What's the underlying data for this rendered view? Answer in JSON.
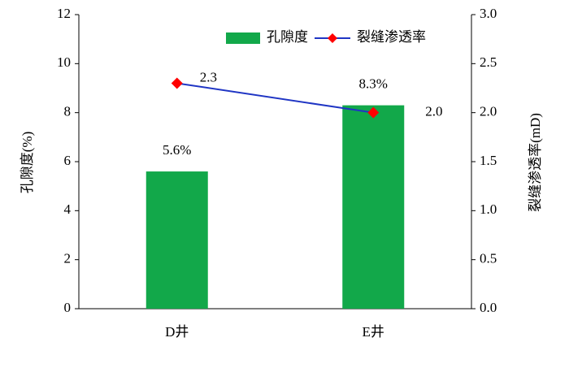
{
  "chart_data": {
    "type": "bar",
    "categories": [
      "D井",
      "E井"
    ],
    "series": [
      {
        "name": "孔隙度",
        "type": "bar",
        "color": "#12a84a",
        "values": [
          5.6,
          8.3
        ],
        "value_labels": [
          "5.6%",
          "8.3%"
        ]
      },
      {
        "name": "裂缝渗透率",
        "type": "line",
        "axis": "y2",
        "color": "#1f35c4",
        "marker_color": "#ff0000",
        "values": [
          2.3,
          2.0
        ],
        "value_labels": [
          "2.3",
          "2.0"
        ]
      }
    ],
    "ylabel": "孔隙度(%)",
    "y2label": "裂缝渗透率(mD)",
    "ylim": [
      0,
      12
    ],
    "yticks": [
      0,
      2,
      4,
      6,
      8,
      10,
      12
    ],
    "y2lim": [
      0,
      3
    ],
    "y2ticks": [
      {
        "value": 0,
        "label": "0.0"
      },
      0.5,
      {
        "value": 1,
        "label": "1.0"
      },
      1.5,
      {
        "value": 2,
        "label": "2.0"
      },
      2.5,
      {
        "value": 3,
        "label": "3.0"
      }
    ],
    "grid": false,
    "legend": "upper right"
  }
}
